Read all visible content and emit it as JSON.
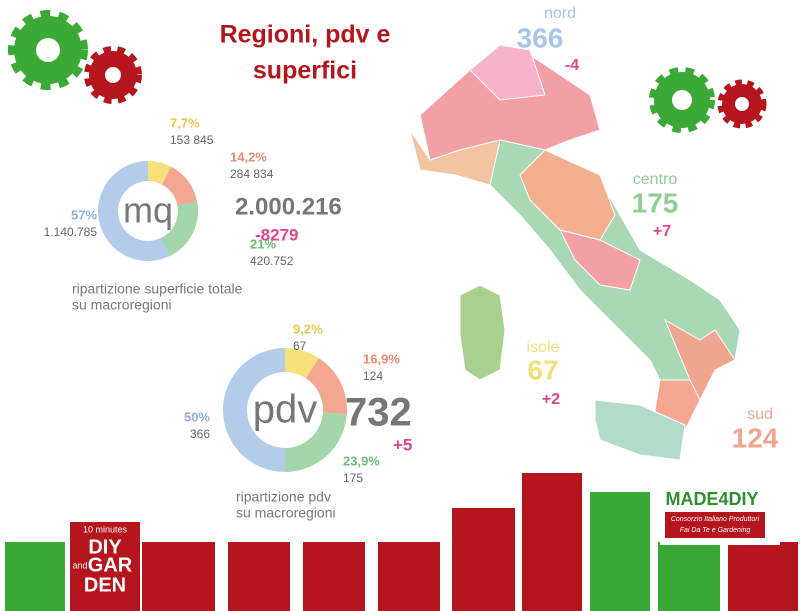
{
  "title_lines": [
    "Regioni, pdv e",
    "superfici"
  ],
  "chart_data": [
    {
      "type": "donut",
      "center_label": "mq",
      "total": "2.000.216",
      "change": "-8279",
      "caption_lines": [
        "ripartizione superficie totale",
        "su macroregioni"
      ],
      "categories": [
        "isole",
        "sud",
        "centro",
        "nord"
      ],
      "values": [
        7.7,
        14.2,
        21,
        57
      ],
      "value_labels": [
        "7,7%",
        "14,2%",
        "21%",
        "57%"
      ],
      "amount_labels": [
        "153 845",
        "284 834",
        "420.752",
        "1.140.785"
      ],
      "colors": [
        "#f6e07a",
        "#f4a690",
        "#a3d6a8",
        "#b2cce9"
      ]
    },
    {
      "type": "donut",
      "center_label": "pdv",
      "total": "732",
      "change": "+5",
      "caption_lines": [
        "ripartizione pdv",
        "su macroregioni"
      ],
      "categories": [
        "isole",
        "sud",
        "centro",
        "nord"
      ],
      "values": [
        9.2,
        16.9,
        23.9,
        50
      ],
      "value_labels": [
        "9,2%",
        "16,9%",
        "23,9%",
        "50%"
      ],
      "amount_labels": [
        "67",
        "124",
        "175",
        "366"
      ],
      "colors": [
        "#f6e07a",
        "#f4a690",
        "#a3d6a8",
        "#b2cce9"
      ]
    }
  ],
  "map": [
    {
      "name": "nord",
      "count": "366",
      "change": "-4",
      "color": "#a9c4e6"
    },
    {
      "name": "centro",
      "count": "175",
      "change": "+7",
      "color": "#8fcf92"
    },
    {
      "name": "isole",
      "count": "67",
      "change": "+2",
      "color": "#efe07a"
    },
    {
      "name": "sud",
      "count": "124",
      "color": "#f0a58e"
    }
  ],
  "logos": {
    "left": [
      "10 minutes",
      "DIY",
      "and",
      "GAR",
      "DEN"
    ],
    "right": [
      "MADE4DIY",
      "Consorzio Italiano Produttori",
      "Fai Da Te e Gardening"
    ]
  }
}
